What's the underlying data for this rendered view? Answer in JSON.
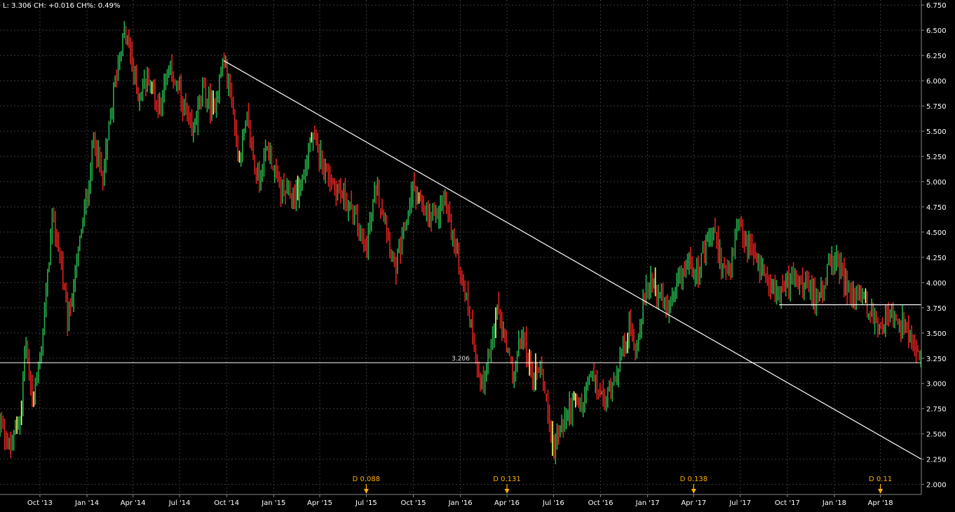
{
  "header": {
    "info": "L: 3.306 CH: +0.016 CH%: 0.49%"
  },
  "colors": {
    "background": "#000000",
    "grid": "#3a3a3a",
    "up": "#22b04a",
    "down": "#e02020",
    "neutral": "#ffff66",
    "line": "#ffffff",
    "dividend": "#ffb000"
  },
  "chart_data": {
    "type": "candlestick",
    "title": "",
    "xlabel": "",
    "ylabel": "",
    "ylim": [
      1.9,
      6.8
    ],
    "grid": true,
    "y_ticks": [
      "2.000",
      "2.250",
      "2.500",
      "2.750",
      "3.000",
      "3.250",
      "3.500",
      "3.750",
      "4.000",
      "4.250",
      "4.500",
      "4.750",
      "5.000",
      "5.250",
      "5.500",
      "5.750",
      "6.000",
      "6.250",
      "6.500",
      "6.750"
    ],
    "y_tick_values": [
      2.0,
      2.25,
      2.5,
      2.75,
      3.0,
      3.25,
      3.5,
      3.75,
      4.0,
      4.25,
      4.5,
      4.75,
      5.0,
      5.25,
      5.5,
      5.75,
      6.0,
      6.25,
      6.5,
      6.75
    ],
    "x_ticks": [
      "Oct '13",
      "Jan '14",
      "Apr '14",
      "Jul '14",
      "Oct '14",
      "Jan '15",
      "Apr '15",
      "Jul '15",
      "Oct '15",
      "Jan '16",
      "Apr '16",
      "Jul '16",
      "Oct '16",
      "Jan '17",
      "Apr '17",
      "Jul '17",
      "Oct '17",
      "Jan '18",
      "Apr '18"
    ],
    "x_tick_dates": [
      "2013-10-01",
      "2014-01-01",
      "2014-04-01",
      "2014-07-01",
      "2014-10-01",
      "2015-01-01",
      "2015-04-01",
      "2015-07-01",
      "2015-10-01",
      "2016-01-01",
      "2016-04-01",
      "2016-07-01",
      "2016-10-01",
      "2017-01-01",
      "2017-04-01",
      "2017-07-01",
      "2017-10-01",
      "2018-01-01",
      "2018-04-01"
    ],
    "x_range": [
      "2013-07-15",
      "2018-06-20"
    ],
    "price_path": [
      {
        "date": "2013-07-15",
        "close": 2.6
      },
      {
        "date": "2013-08-05",
        "close": 2.35
      },
      {
        "date": "2013-08-26",
        "close": 2.75
      },
      {
        "date": "2013-09-02",
        "close": 3.45
      },
      {
        "date": "2013-09-16",
        "close": 2.85
      },
      {
        "date": "2013-10-01",
        "close": 3.2
      },
      {
        "date": "2013-10-15",
        "close": 4.0
      },
      {
        "date": "2013-10-25",
        "close": 4.65
      },
      {
        "date": "2013-11-10",
        "close": 4.25
      },
      {
        "date": "2013-11-25",
        "close": 3.6
      },
      {
        "date": "2013-12-15",
        "close": 4.3
      },
      {
        "date": "2014-01-05",
        "close": 5.0
      },
      {
        "date": "2014-01-15",
        "close": 5.45
      },
      {
        "date": "2014-02-01",
        "close": 5.0
      },
      {
        "date": "2014-02-20",
        "close": 5.8
      },
      {
        "date": "2014-03-10",
        "close": 6.4
      },
      {
        "date": "2014-03-20",
        "close": 6.45
      },
      {
        "date": "2014-04-10",
        "close": 5.85
      },
      {
        "date": "2014-05-01",
        "close": 6.05
      },
      {
        "date": "2014-05-20",
        "close": 5.75
      },
      {
        "date": "2014-06-15",
        "close": 6.1
      },
      {
        "date": "2014-07-05",
        "close": 5.8
      },
      {
        "date": "2014-07-25",
        "close": 5.45
      },
      {
        "date": "2014-08-15",
        "close": 5.9
      },
      {
        "date": "2014-09-05",
        "close": 5.7
      },
      {
        "date": "2014-09-25",
        "close": 6.2
      },
      {
        "date": "2014-10-10",
        "close": 5.85
      },
      {
        "date": "2014-10-25",
        "close": 5.2
      },
      {
        "date": "2014-11-10",
        "close": 5.6
      },
      {
        "date": "2014-12-01",
        "close": 5.0
      },
      {
        "date": "2014-12-20",
        "close": 5.35
      },
      {
        "date": "2015-01-15",
        "close": 4.9
      },
      {
        "date": "2015-02-10",
        "close": 4.85
      },
      {
        "date": "2015-03-01",
        "close": 5.05
      },
      {
        "date": "2015-03-15",
        "close": 5.45
      },
      {
        "date": "2015-04-15",
        "close": 5.1
      },
      {
        "date": "2015-05-01",
        "close": 4.95
      },
      {
        "date": "2015-05-25",
        "close": 4.8
      },
      {
        "date": "2015-06-15",
        "close": 4.55
      },
      {
        "date": "2015-06-30",
        "close": 4.3
      },
      {
        "date": "2015-07-20",
        "close": 4.95
      },
      {
        "date": "2015-08-10",
        "close": 4.55
      },
      {
        "date": "2015-08-25",
        "close": 4.1
      },
      {
        "date": "2015-09-10",
        "close": 4.4
      },
      {
        "date": "2015-10-01",
        "close": 4.95
      },
      {
        "date": "2015-10-20",
        "close": 4.7
      },
      {
        "date": "2015-11-10",
        "close": 4.6
      },
      {
        "date": "2015-12-01",
        "close": 4.85
      },
      {
        "date": "2015-12-20",
        "close": 4.4
      },
      {
        "date": "2016-01-10",
        "close": 3.9
      },
      {
        "date": "2016-01-25",
        "close": 3.5
      },
      {
        "date": "2016-02-10",
        "close": 2.95
      },
      {
        "date": "2016-02-25",
        "close": 3.25
      },
      {
        "date": "2016-03-15",
        "close": 3.75
      },
      {
        "date": "2016-04-01",
        "close": 3.3
      },
      {
        "date": "2016-04-15",
        "close": 3.1
      },
      {
        "date": "2016-05-01",
        "close": 3.5
      },
      {
        "date": "2016-05-20",
        "close": 3.05
      },
      {
        "date": "2016-06-05",
        "close": 3.2
      },
      {
        "date": "2016-06-20",
        "close": 2.75
      },
      {
        "date": "2016-06-28",
        "close": 2.35
      },
      {
        "date": "2016-07-15",
        "close": 2.55
      },
      {
        "date": "2016-08-05",
        "close": 2.8
      },
      {
        "date": "2016-08-25",
        "close": 2.75
      },
      {
        "date": "2016-09-10",
        "close": 3.1
      },
      {
        "date": "2016-09-25",
        "close": 2.95
      },
      {
        "date": "2016-10-10",
        "close": 2.8
      },
      {
        "date": "2016-10-25",
        "close": 3.05
      },
      {
        "date": "2016-11-10",
        "close": 3.25
      },
      {
        "date": "2016-11-25",
        "close": 3.55
      },
      {
        "date": "2016-12-10",
        "close": 3.35
      },
      {
        "date": "2016-12-25",
        "close": 3.85
      },
      {
        "date": "2017-01-10",
        "close": 4.05
      },
      {
        "date": "2017-01-25",
        "close": 3.85
      },
      {
        "date": "2017-02-10",
        "close": 3.7
      },
      {
        "date": "2017-03-01",
        "close": 3.95
      },
      {
        "date": "2017-03-20",
        "close": 4.2
      },
      {
        "date": "2017-04-10",
        "close": 4.1
      },
      {
        "date": "2017-04-25",
        "close": 4.35
      },
      {
        "date": "2017-05-10",
        "close": 4.5
      },
      {
        "date": "2017-05-25",
        "close": 4.2
      },
      {
        "date": "2017-06-10",
        "close": 4.05
      },
      {
        "date": "2017-06-25",
        "close": 4.55
      },
      {
        "date": "2017-07-10",
        "close": 4.4
      },
      {
        "date": "2017-07-25",
        "close": 4.3
      },
      {
        "date": "2017-08-10",
        "close": 4.15
      },
      {
        "date": "2017-08-25",
        "close": 4.05
      },
      {
        "date": "2017-09-10",
        "close": 3.9
      },
      {
        "date": "2017-09-25",
        "close": 3.95
      },
      {
        "date": "2017-10-15",
        "close": 4.05
      },
      {
        "date": "2017-11-05",
        "close": 3.95
      },
      {
        "date": "2017-11-25",
        "close": 3.85
      },
      {
        "date": "2017-12-15",
        "close": 4.05
      },
      {
        "date": "2018-01-05",
        "close": 4.25
      },
      {
        "date": "2018-01-20",
        "close": 4.0
      },
      {
        "date": "2018-02-05",
        "close": 3.85
      },
      {
        "date": "2018-02-25",
        "close": 3.9
      },
      {
        "date": "2018-03-15",
        "close": 3.65
      },
      {
        "date": "2018-04-01",
        "close": 3.6
      },
      {
        "date": "2018-04-20",
        "close": 3.7
      },
      {
        "date": "2018-05-05",
        "close": 3.55
      },
      {
        "date": "2018-05-20",
        "close": 3.6
      },
      {
        "date": "2018-06-01",
        "close": 3.4
      },
      {
        "date": "2018-06-10",
        "close": 3.25
      },
      {
        "date": "2018-06-20",
        "close": 3.306
      }
    ],
    "trendline": {
      "from": {
        "date": "2014-09-25",
        "value": 6.2
      },
      "to": {
        "date": "2018-06-20",
        "value": 2.25
      }
    },
    "resistance_segment": {
      "from_date": "2017-09-15",
      "to_date": "2018-06-20",
      "value": 3.78
    },
    "horizontal_level": {
      "value": 3.206,
      "label": "3.206"
    },
    "dividends": [
      {
        "date": "2015-07-01",
        "label": "D 0.088"
      },
      {
        "date": "2016-04-01",
        "label": "D 0.131"
      },
      {
        "date": "2017-04-01",
        "label": "D 0.138"
      },
      {
        "date": "2018-04-01",
        "label": "D 0.11"
      }
    ]
  }
}
